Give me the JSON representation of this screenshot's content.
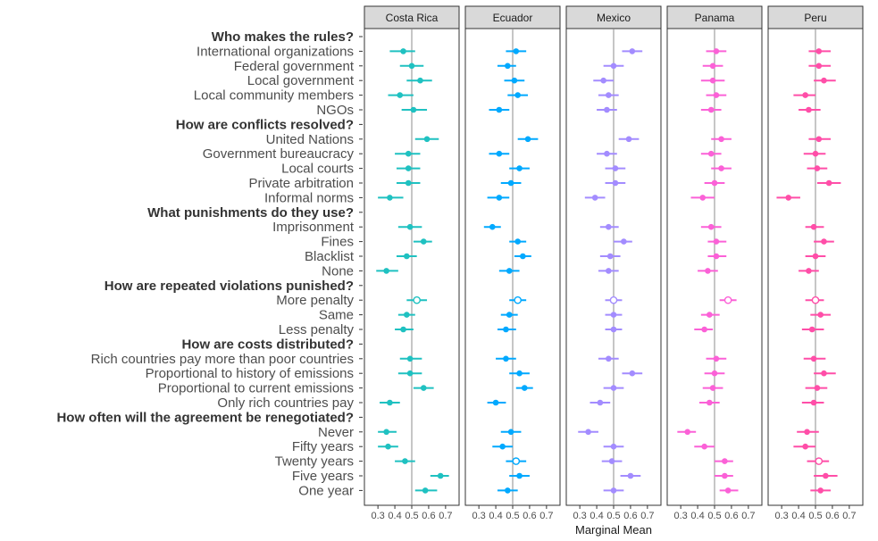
{
  "chart_data": {
    "type": "scatter",
    "xlabel": "Marginal Mean",
    "xlim": [
      0.22,
      0.78
    ],
    "x_ticks": [
      "0.3",
      "0.4",
      "0.5",
      "0.6",
      "0.7"
    ],
    "reference_x": 0.5,
    "rows": [
      {
        "label": "Who makes the rules?",
        "header": true
      },
      {
        "label": "International organizations"
      },
      {
        "label": "Federal government"
      },
      {
        "label": "Local government"
      },
      {
        "label": "Local community members"
      },
      {
        "label": "NGOs"
      },
      {
        "label": "How are conflicts resolved?",
        "header": true
      },
      {
        "label": "United Nations"
      },
      {
        "label": "Government bureaucracy"
      },
      {
        "label": "Local courts"
      },
      {
        "label": "Private arbitration"
      },
      {
        "label": "Informal norms"
      },
      {
        "label": "What punishments do they use?",
        "header": true
      },
      {
        "label": "Imprisonment"
      },
      {
        "label": "Fines"
      },
      {
        "label": "Blacklist"
      },
      {
        "label": "None"
      },
      {
        "label": "How are repeated violations punished?",
        "header": true
      },
      {
        "label": "More penalty"
      },
      {
        "label": "Same"
      },
      {
        "label": "Less penalty"
      },
      {
        "label": "How are costs distributed?",
        "header": true
      },
      {
        "label": "Rich countries pay more than poor countries"
      },
      {
        "label": "Proportional to history of emissions"
      },
      {
        "label": "Proportional to current emissions"
      },
      {
        "label": "Only rich countries pay"
      },
      {
        "label": "How often will the agreement be renegotiated?",
        "header": true
      },
      {
        "label": "Never"
      },
      {
        "label": "Fifty years"
      },
      {
        "label": "Twenty years"
      },
      {
        "label": "Five years"
      },
      {
        "label": "One year"
      }
    ],
    "panels": [
      {
        "name": "Costa Rica",
        "color": "#1fc1c1",
        "points": [
          null,
          {
            "mean": 0.45,
            "lo": 0.37,
            "hi": 0.52
          },
          {
            "mean": 0.5,
            "lo": 0.43,
            "hi": 0.57
          },
          {
            "mean": 0.55,
            "lo": 0.47,
            "hi": 0.62
          },
          {
            "mean": 0.43,
            "lo": 0.36,
            "hi": 0.51
          },
          {
            "mean": 0.51,
            "lo": 0.44,
            "hi": 0.59
          },
          null,
          {
            "mean": 0.59,
            "lo": 0.52,
            "hi": 0.66
          },
          {
            "mean": 0.48,
            "lo": 0.4,
            "hi": 0.55
          },
          {
            "mean": 0.48,
            "lo": 0.41,
            "hi": 0.55
          },
          {
            "mean": 0.48,
            "lo": 0.41,
            "hi": 0.55
          },
          {
            "mean": 0.37,
            "lo": 0.3,
            "hi": 0.45
          },
          null,
          {
            "mean": 0.49,
            "lo": 0.42,
            "hi": 0.56
          },
          {
            "mean": 0.57,
            "lo": 0.51,
            "hi": 0.62
          },
          {
            "mean": 0.47,
            "lo": 0.41,
            "hi": 0.53
          },
          {
            "mean": 0.35,
            "lo": 0.29,
            "hi": 0.42
          },
          null,
          {
            "mean": 0.53,
            "lo": 0.47,
            "hi": 0.59,
            "hollow": true
          },
          {
            "mean": 0.47,
            "lo": 0.42,
            "hi": 0.52
          },
          {
            "mean": 0.45,
            "lo": 0.4,
            "hi": 0.51
          },
          null,
          {
            "mean": 0.49,
            "lo": 0.43,
            "hi": 0.56
          },
          {
            "mean": 0.49,
            "lo": 0.42,
            "hi": 0.56
          },
          {
            "mean": 0.57,
            "lo": 0.51,
            "hi": 0.63
          },
          {
            "mean": 0.37,
            "lo": 0.31,
            "hi": 0.43
          },
          null,
          {
            "mean": 0.35,
            "lo": 0.3,
            "hi": 0.41
          },
          {
            "mean": 0.36,
            "lo": 0.3,
            "hi": 0.42
          },
          {
            "mean": 0.46,
            "lo": 0.4,
            "hi": 0.52
          },
          {
            "mean": 0.67,
            "lo": 0.61,
            "hi": 0.72
          },
          {
            "mean": 0.58,
            "lo": 0.52,
            "hi": 0.65
          }
        ]
      },
      {
        "name": "Ecuador",
        "color": "#00a9ff",
        "points": [
          null,
          {
            "mean": 0.52,
            "lo": 0.46,
            "hi": 0.58
          },
          {
            "mean": 0.47,
            "lo": 0.41,
            "hi": 0.52
          },
          {
            "mean": 0.51,
            "lo": 0.45,
            "hi": 0.57
          },
          {
            "mean": 0.53,
            "lo": 0.47,
            "hi": 0.59
          },
          {
            "mean": 0.42,
            "lo": 0.36,
            "hi": 0.48
          },
          null,
          {
            "mean": 0.59,
            "lo": 0.53,
            "hi": 0.65
          },
          {
            "mean": 0.42,
            "lo": 0.36,
            "hi": 0.48
          },
          {
            "mean": 0.54,
            "lo": 0.48,
            "hi": 0.6
          },
          {
            "mean": 0.49,
            "lo": 0.43,
            "hi": 0.55
          },
          {
            "mean": 0.42,
            "lo": 0.35,
            "hi": 0.48
          },
          null,
          {
            "mean": 0.38,
            "lo": 0.33,
            "hi": 0.43
          },
          {
            "mean": 0.53,
            "lo": 0.48,
            "hi": 0.58
          },
          {
            "mean": 0.56,
            "lo": 0.51,
            "hi": 0.61
          },
          {
            "mean": 0.48,
            "lo": 0.42,
            "hi": 0.54
          },
          null,
          {
            "mean": 0.53,
            "lo": 0.48,
            "hi": 0.58,
            "hollow": true
          },
          {
            "mean": 0.48,
            "lo": 0.43,
            "hi": 0.53
          },
          {
            "mean": 0.46,
            "lo": 0.41,
            "hi": 0.52
          },
          null,
          {
            "mean": 0.46,
            "lo": 0.4,
            "hi": 0.52
          },
          {
            "mean": 0.54,
            "lo": 0.48,
            "hi": 0.6
          },
          {
            "mean": 0.57,
            "lo": 0.52,
            "hi": 0.62
          },
          {
            "mean": 0.4,
            "lo": 0.35,
            "hi": 0.46
          },
          null,
          {
            "mean": 0.49,
            "lo": 0.43,
            "hi": 0.55
          },
          {
            "mean": 0.44,
            "lo": 0.38,
            "hi": 0.5
          },
          {
            "mean": 0.52,
            "lo": 0.46,
            "hi": 0.58,
            "hollow": true
          },
          {
            "mean": 0.54,
            "lo": 0.48,
            "hi": 0.6
          },
          {
            "mean": 0.47,
            "lo": 0.41,
            "hi": 0.53
          }
        ]
      },
      {
        "name": "Mexico",
        "color": "#a38cff",
        "points": [
          null,
          {
            "mean": 0.61,
            "lo": 0.55,
            "hi": 0.67
          },
          {
            "mean": 0.5,
            "lo": 0.44,
            "hi": 0.56
          },
          {
            "mean": 0.44,
            "lo": 0.38,
            "hi": 0.5
          },
          {
            "mean": 0.47,
            "lo": 0.41,
            "hi": 0.53
          },
          {
            "mean": 0.46,
            "lo": 0.4,
            "hi": 0.52
          },
          null,
          {
            "mean": 0.59,
            "lo": 0.53,
            "hi": 0.65
          },
          {
            "mean": 0.46,
            "lo": 0.4,
            "hi": 0.52
          },
          {
            "mean": 0.51,
            "lo": 0.45,
            "hi": 0.57
          },
          {
            "mean": 0.51,
            "lo": 0.45,
            "hi": 0.57
          },
          {
            "mean": 0.39,
            "lo": 0.33,
            "hi": 0.45
          },
          null,
          {
            "mean": 0.47,
            "lo": 0.42,
            "hi": 0.53
          },
          {
            "mean": 0.56,
            "lo": 0.5,
            "hi": 0.61
          },
          {
            "mean": 0.48,
            "lo": 0.42,
            "hi": 0.54
          },
          {
            "mean": 0.47,
            "lo": 0.41,
            "hi": 0.53
          },
          null,
          {
            "mean": 0.5,
            "lo": 0.45,
            "hi": 0.55,
            "hollow": true
          },
          {
            "mean": 0.5,
            "lo": 0.45,
            "hi": 0.55
          },
          {
            "mean": 0.5,
            "lo": 0.45,
            "hi": 0.55
          },
          null,
          {
            "mean": 0.47,
            "lo": 0.41,
            "hi": 0.53
          },
          {
            "mean": 0.61,
            "lo": 0.55,
            "hi": 0.67
          },
          {
            "mean": 0.5,
            "lo": 0.44,
            "hi": 0.56
          },
          {
            "mean": 0.42,
            "lo": 0.36,
            "hi": 0.48
          },
          null,
          {
            "mean": 0.35,
            "lo": 0.29,
            "hi": 0.41
          },
          {
            "mean": 0.5,
            "lo": 0.44,
            "hi": 0.56
          },
          {
            "mean": 0.49,
            "lo": 0.43,
            "hi": 0.55
          },
          {
            "mean": 0.6,
            "lo": 0.54,
            "hi": 0.66
          },
          {
            "mean": 0.5,
            "lo": 0.44,
            "hi": 0.56
          }
        ]
      },
      {
        "name": "Panama",
        "color": "#fb61d7",
        "points": [
          null,
          {
            "mean": 0.51,
            "lo": 0.45,
            "hi": 0.57
          },
          {
            "mean": 0.49,
            "lo": 0.43,
            "hi": 0.55
          },
          {
            "mean": 0.49,
            "lo": 0.42,
            "hi": 0.56
          },
          {
            "mean": 0.51,
            "lo": 0.45,
            "hi": 0.57
          },
          {
            "mean": 0.48,
            "lo": 0.42,
            "hi": 0.54
          },
          null,
          {
            "mean": 0.54,
            "lo": 0.48,
            "hi": 0.6
          },
          {
            "mean": 0.48,
            "lo": 0.42,
            "hi": 0.54
          },
          {
            "mean": 0.54,
            "lo": 0.48,
            "hi": 0.6
          },
          {
            "mean": 0.5,
            "lo": 0.44,
            "hi": 0.56
          },
          {
            "mean": 0.43,
            "lo": 0.36,
            "hi": 0.5
          },
          null,
          {
            "mean": 0.48,
            "lo": 0.42,
            "hi": 0.54
          },
          {
            "mean": 0.51,
            "lo": 0.46,
            "hi": 0.57
          },
          {
            "mean": 0.51,
            "lo": 0.46,
            "hi": 0.57
          },
          {
            "mean": 0.46,
            "lo": 0.4,
            "hi": 0.52
          },
          null,
          {
            "mean": 0.58,
            "lo": 0.53,
            "hi": 0.63,
            "hollow": true
          },
          {
            "mean": 0.47,
            "lo": 0.42,
            "hi": 0.53
          },
          {
            "mean": 0.44,
            "lo": 0.38,
            "hi": 0.49
          },
          null,
          {
            "mean": 0.51,
            "lo": 0.45,
            "hi": 0.57
          },
          {
            "mean": 0.5,
            "lo": 0.44,
            "hi": 0.56
          },
          {
            "mean": 0.49,
            "lo": 0.43,
            "hi": 0.55
          },
          {
            "mean": 0.47,
            "lo": 0.41,
            "hi": 0.53
          },
          null,
          {
            "mean": 0.34,
            "lo": 0.28,
            "hi": 0.39
          },
          {
            "mean": 0.44,
            "lo": 0.38,
            "hi": 0.5
          },
          {
            "mean": 0.56,
            "lo": 0.5,
            "hi": 0.61
          },
          {
            "mean": 0.56,
            "lo": 0.5,
            "hi": 0.61
          },
          {
            "mean": 0.58,
            "lo": 0.53,
            "hi": 0.64
          }
        ]
      },
      {
        "name": "Peru",
        "color": "#ff4ea8",
        "points": [
          null,
          {
            "mean": 0.52,
            "lo": 0.46,
            "hi": 0.59
          },
          {
            "mean": 0.52,
            "lo": 0.46,
            "hi": 0.59
          },
          {
            "mean": 0.55,
            "lo": 0.49,
            "hi": 0.62
          },
          {
            "mean": 0.44,
            "lo": 0.37,
            "hi": 0.5
          },
          {
            "mean": 0.46,
            "lo": 0.4,
            "hi": 0.53
          },
          null,
          {
            "mean": 0.52,
            "lo": 0.46,
            "hi": 0.59
          },
          {
            "mean": 0.5,
            "lo": 0.43,
            "hi": 0.56
          },
          {
            "mean": 0.51,
            "lo": 0.45,
            "hi": 0.57
          },
          {
            "mean": 0.58,
            "lo": 0.51,
            "hi": 0.65
          },
          {
            "mean": 0.34,
            "lo": 0.27,
            "hi": 0.41
          },
          null,
          {
            "mean": 0.49,
            "lo": 0.44,
            "hi": 0.55
          },
          {
            "mean": 0.55,
            "lo": 0.49,
            "hi": 0.61
          },
          {
            "mean": 0.5,
            "lo": 0.44,
            "hi": 0.56
          },
          {
            "mean": 0.46,
            "lo": 0.4,
            "hi": 0.52
          },
          null,
          {
            "mean": 0.5,
            "lo": 0.44,
            "hi": 0.55,
            "hollow": true
          },
          {
            "mean": 0.53,
            "lo": 0.47,
            "hi": 0.59
          },
          {
            "mean": 0.48,
            "lo": 0.42,
            "hi": 0.55
          },
          null,
          {
            "mean": 0.49,
            "lo": 0.43,
            "hi": 0.56
          },
          {
            "mean": 0.55,
            "lo": 0.49,
            "hi": 0.62
          },
          {
            "mean": 0.51,
            "lo": 0.44,
            "hi": 0.57
          },
          {
            "mean": 0.49,
            "lo": 0.42,
            "hi": 0.55
          },
          null,
          {
            "mean": 0.45,
            "lo": 0.39,
            "hi": 0.52
          },
          {
            "mean": 0.44,
            "lo": 0.37,
            "hi": 0.5
          },
          {
            "mean": 0.52,
            "lo": 0.45,
            "hi": 0.58,
            "hollow": true
          },
          {
            "mean": 0.56,
            "lo": 0.49,
            "hi": 0.63
          },
          {
            "mean": 0.53,
            "lo": 0.47,
            "hi": 0.59
          }
        ]
      }
    ]
  }
}
